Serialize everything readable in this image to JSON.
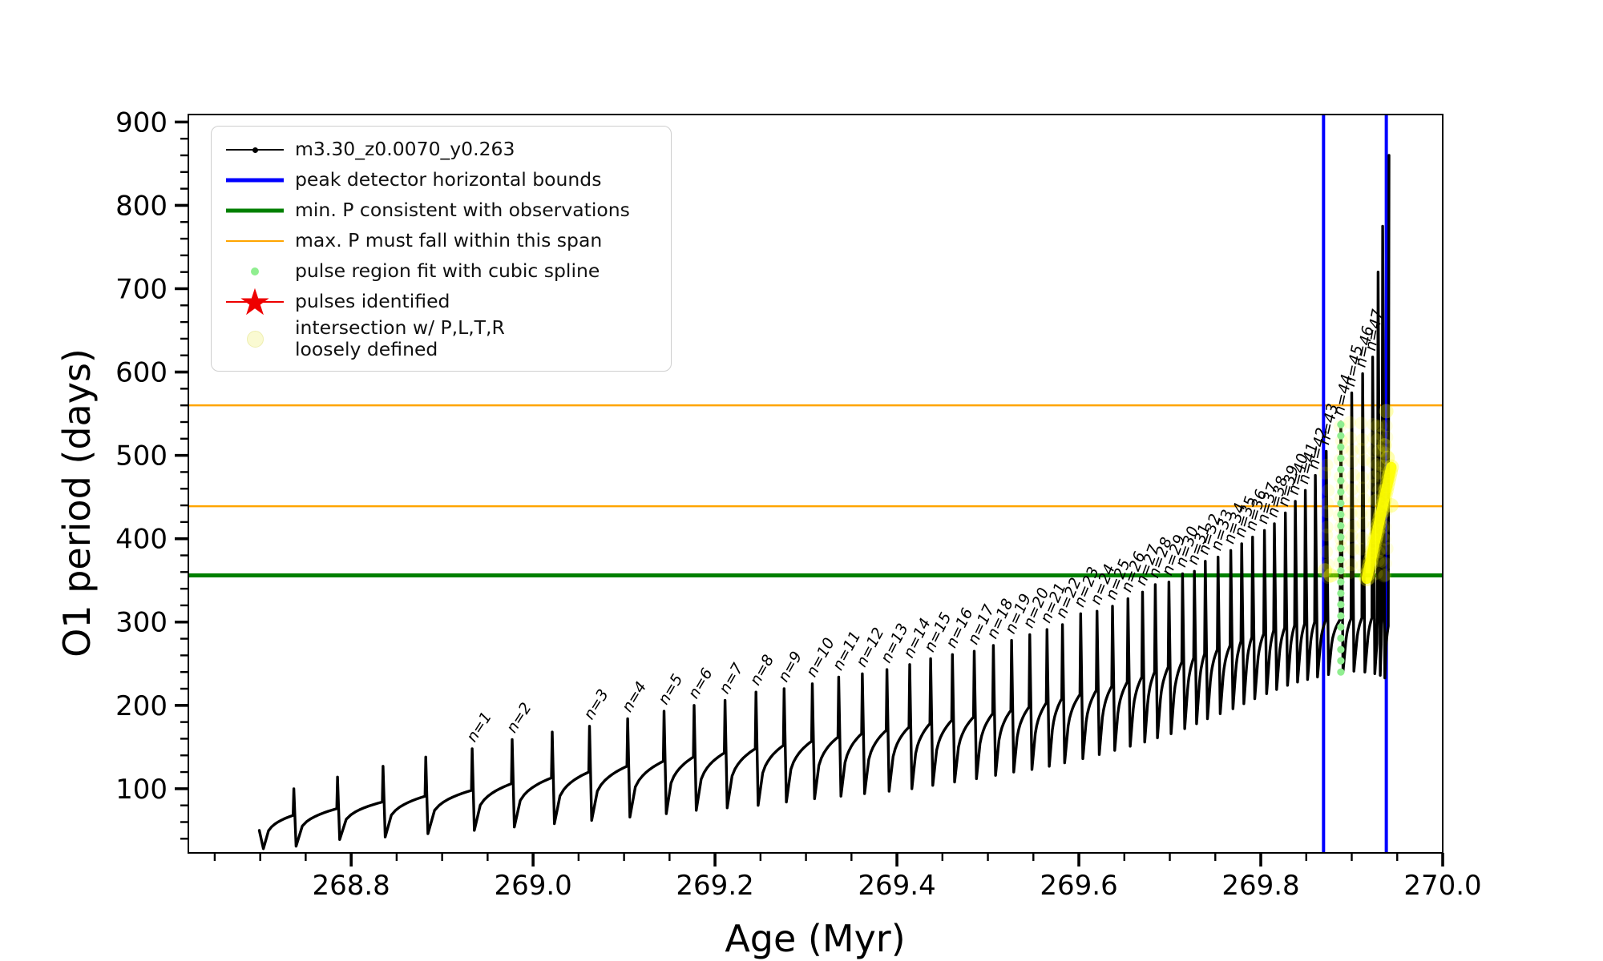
{
  "chart_data": {
    "type": "line",
    "title": "",
    "xlabel": "Age (Myr)",
    "ylabel": "O1 period (days)",
    "xlim": [
      268.621,
      270.0
    ],
    "ylim": [
      23,
      909
    ],
    "grid": false,
    "x_ticks": {
      "major": [
        268.8,
        269.0,
        269.2,
        269.4,
        269.6,
        269.8,
        270.0
      ],
      "labels": [
        "268.8",
        "269.0",
        "269.2",
        "269.4",
        "269.6",
        "269.8",
        "270.0"
      ],
      "minor_step": 0.05
    },
    "y_ticks": {
      "major": [
        100,
        200,
        300,
        400,
        500,
        600,
        700,
        800,
        900
      ],
      "labels": [
        "100",
        "200",
        "300",
        "400",
        "500",
        "600",
        "700",
        "800",
        "900"
      ],
      "minor_step": 20
    },
    "colors": {
      "track": "#000000",
      "peak_bounds": "#0000ff",
      "min_p": "#008000",
      "max_p_span": "#ffa500",
      "spline_dots": "#90ee90",
      "pulse_star": "#ee0000",
      "intersection": "#ffff00"
    },
    "legend": [
      {
        "label": "m3.30_z0.0070_y0.263",
        "marker": "line-dot-black"
      },
      {
        "label": "peak detector horizontal bounds",
        "marker": "line-blue"
      },
      {
        "label": "min. P consistent with observations",
        "marker": "line-green"
      },
      {
        "label": "max. P must fall within this span",
        "marker": "line-orange"
      },
      {
        "label": "pulse region fit with cubic spline",
        "marker": "dot-lightgreen"
      },
      {
        "label": "pulses identified",
        "marker": "star-red"
      },
      {
        "label": "intersection w/ P,L,T,R\nloosely defined",
        "marker": "dot-paleyellow"
      }
    ],
    "hlines": [
      {
        "name": "min-P-consistent",
        "y": 356,
        "color": "#008000",
        "width": 5
      },
      {
        "name": "max-P-span-upper",
        "y": 560,
        "color": "#ffa500",
        "width": 2.5
      },
      {
        "name": "max-P-span-lower",
        "y": 439,
        "color": "#ffa500",
        "width": 2.5
      }
    ],
    "vlines": [
      {
        "name": "peak-detector-left",
        "x": 269.869,
        "color": "#0000ff",
        "width": 4
      },
      {
        "name": "peak-detector-right",
        "x": 269.938,
        "color": "#0000ff",
        "width": 4
      }
    ],
    "track": {
      "series_label": "m3.30_z0.0070_y0.263",
      "start": {
        "age": 268.699,
        "P": 50,
        "dip_age": 268.7035,
        "dip_P": 28
      },
      "baseline": [
        [
          268.699,
          50
        ],
        [
          268.737,
          68
        ],
        [
          268.785,
          76
        ],
        [
          268.835,
          84
        ],
        [
          268.882,
          91
        ],
        [
          268.933,
          98
        ],
        [
          268.977,
          106
        ],
        [
          269.021,
          113
        ],
        [
          269.062,
          120
        ],
        [
          269.104,
          127
        ],
        [
          269.144,
          133
        ],
        [
          269.177,
          138
        ],
        [
          269.211,
          143
        ],
        [
          269.245,
          148
        ],
        [
          269.276,
          152
        ],
        [
          269.307,
          157
        ],
        [
          269.336,
          162
        ],
        [
          269.362,
          166
        ],
        [
          269.389,
          170
        ],
        [
          269.414,
          174
        ],
        [
          269.437,
          178
        ],
        [
          269.461,
          182
        ],
        [
          269.485,
          186
        ],
        [
          269.506,
          190
        ],
        [
          269.526,
          194
        ],
        [
          269.546,
          198
        ],
        [
          269.565,
          203
        ],
        [
          269.582,
          208
        ],
        [
          269.602,
          213
        ],
        [
          269.62,
          218
        ],
        [
          269.637,
          223
        ],
        [
          269.654,
          228
        ],
        [
          269.67,
          234
        ],
        [
          269.684,
          240
        ],
        [
          269.699,
          246
        ],
        [
          269.714,
          252
        ],
        [
          269.727,
          257
        ],
        [
          269.739,
          262
        ],
        [
          269.753,
          267
        ],
        [
          269.767,
          272
        ],
        [
          269.779,
          277
        ],
        [
          269.791,
          282
        ],
        [
          269.804,
          286
        ],
        [
          269.815,
          290
        ],
        [
          269.827,
          293
        ],
        [
          269.838,
          296
        ],
        [
          269.849,
          298
        ],
        [
          269.86,
          300
        ],
        [
          269.872,
          302
        ],
        [
          269.888,
          303
        ],
        [
          269.9,
          304
        ],
        [
          269.912,
          305
        ],
        [
          269.923,
          305
        ],
        [
          269.934,
          305
        ]
      ],
      "pulses": [
        {
          "n": null,
          "age": 268.737,
          "peak": 100,
          "dip": 31
        },
        {
          "n": null,
          "age": 268.785,
          "peak": 114,
          "dip": 39
        },
        {
          "n": null,
          "age": 268.835,
          "peak": 127,
          "dip": 42
        },
        {
          "n": null,
          "age": 268.882,
          "peak": 138,
          "dip": 46
        },
        {
          "n": 1,
          "age": 268.933,
          "peak": 148,
          "dip": 50
        },
        {
          "n": 2,
          "age": 268.977,
          "peak": 159,
          "dip": 54
        },
        {
          "n": null,
          "age": 269.021,
          "peak": 168,
          "dip": 58
        },
        {
          "n": 3,
          "age": 269.062,
          "peak": 175,
          "dip": 62
        },
        {
          "n": 4,
          "age": 269.104,
          "peak": 184,
          "dip": 66
        },
        {
          "n": 5,
          "age": 269.144,
          "peak": 193,
          "dip": 70
        },
        {
          "n": 6,
          "age": 269.177,
          "peak": 200,
          "dip": 74
        },
        {
          "n": 7,
          "age": 269.211,
          "peak": 206,
          "dip": 77
        },
        {
          "n": 8,
          "age": 269.245,
          "peak": 216,
          "dip": 80
        },
        {
          "n": 9,
          "age": 269.276,
          "peak": 220,
          "dip": 84
        },
        {
          "n": 10,
          "age": 269.307,
          "peak": 226,
          "dip": 88
        },
        {
          "n": 11,
          "age": 269.336,
          "peak": 234,
          "dip": 91
        },
        {
          "n": 12,
          "age": 269.362,
          "peak": 238,
          "dip": 94
        },
        {
          "n": 13,
          "age": 269.389,
          "peak": 243,
          "dip": 97
        },
        {
          "n": 14,
          "age": 269.414,
          "peak": 249,
          "dip": 100
        },
        {
          "n": 15,
          "age": 269.437,
          "peak": 256,
          "dip": 104
        },
        {
          "n": 16,
          "age": 269.461,
          "peak": 261,
          "dip": 108
        },
        {
          "n": 17,
          "age": 269.485,
          "peak": 265,
          "dip": 112
        },
        {
          "n": 18,
          "age": 269.506,
          "peak": 272,
          "dip": 116
        },
        {
          "n": 19,
          "age": 269.526,
          "peak": 278,
          "dip": 120
        },
        {
          "n": 20,
          "age": 269.546,
          "peak": 285,
          "dip": 123
        },
        {
          "n": 21,
          "age": 269.565,
          "peak": 291,
          "dip": 127
        },
        {
          "n": 22,
          "age": 269.582,
          "peak": 297,
          "dip": 131
        },
        {
          "n": 23,
          "age": 269.602,
          "peak": 310,
          "dip": 136
        },
        {
          "n": 24,
          "age": 269.62,
          "peak": 313,
          "dip": 141
        },
        {
          "n": 25,
          "age": 269.637,
          "peak": 319,
          "dip": 146
        },
        {
          "n": 26,
          "age": 269.654,
          "peak": 328,
          "dip": 151
        },
        {
          "n": 27,
          "age": 269.67,
          "peak": 336,
          "dip": 156
        },
        {
          "n": 28,
          "age": 269.684,
          "peak": 345,
          "dip": 161
        },
        {
          "n": 29,
          "age": 269.699,
          "peak": 348,
          "dip": 166
        },
        {
          "n": 30,
          "age": 269.714,
          "peak": 358,
          "dip": 172
        },
        {
          "n": 31,
          "age": 269.727,
          "peak": 361,
          "dip": 178
        },
        {
          "n": 32,
          "age": 269.739,
          "peak": 373,
          "dip": 184
        },
        {
          "n": 33,
          "age": 269.753,
          "peak": 378,
          "dip": 190
        },
        {
          "n": 34,
          "age": 269.767,
          "peak": 386,
          "dip": 196
        },
        {
          "n": 35,
          "age": 269.779,
          "peak": 394,
          "dip": 202
        },
        {
          "n": 36,
          "age": 269.791,
          "peak": 402,
          "dip": 208
        },
        {
          "n": 37,
          "age": 269.804,
          "peak": 410,
          "dip": 214
        },
        {
          "n": 38,
          "age": 269.815,
          "peak": 418,
          "dip": 219
        },
        {
          "n": 39,
          "age": 269.827,
          "peak": 431,
          "dip": 224
        },
        {
          "n": 40,
          "age": 269.838,
          "peak": 445,
          "dip": 228
        },
        {
          "n": 41,
          "age": 269.849,
          "peak": 458,
          "dip": 231
        },
        {
          "n": 42,
          "age": 269.86,
          "peak": 476,
          "dip": 234
        },
        {
          "n": 43,
          "age": 269.872,
          "peak": 505,
          "dip": 237
        },
        {
          "n": 44,
          "age": 269.888,
          "peak": 540,
          "dip": 240
        },
        {
          "n": 45,
          "age": 269.9,
          "peak": 575,
          "dip": 241
        },
        {
          "n": 46,
          "age": 269.912,
          "peak": 598,
          "dip": 240
        },
        {
          "n": 47,
          "age": 269.923,
          "peak": 618,
          "dip": 238
        },
        {
          "n": null,
          "age": 269.929,
          "peak": 720,
          "dip": 236
        },
        {
          "n": null,
          "age": 269.934,
          "peak": 775,
          "dip": 233
        }
      ],
      "end_spike": {
        "age": 269.941,
        "peak": 860
      }
    },
    "pulse_spline_dots": {
      "x": 269.888,
      "P_from": 240,
      "P_to": 540,
      "step": 13.5
    },
    "intersection_region": {
      "core": [
        [
          269.9165,
          352
        ],
        [
          269.9435,
          486
        ]
      ],
      "column_ages": [
        269.872,
        269.888,
        269.9,
        269.912,
        269.923,
        269.929,
        269.934,
        269.9375
      ],
      "column_caps": [
        505,
        540,
        545,
        545,
        545,
        545,
        545,
        540
      ],
      "P_min": 356,
      "outliers": [
        [
          269.938,
          553
        ],
        [
          269.936,
          512
        ],
        [
          269.8705,
          362
        ],
        [
          269.877,
          356
        ],
        [
          269.9395,
          497
        ],
        [
          269.9435,
          440
        ]
      ]
    }
  }
}
